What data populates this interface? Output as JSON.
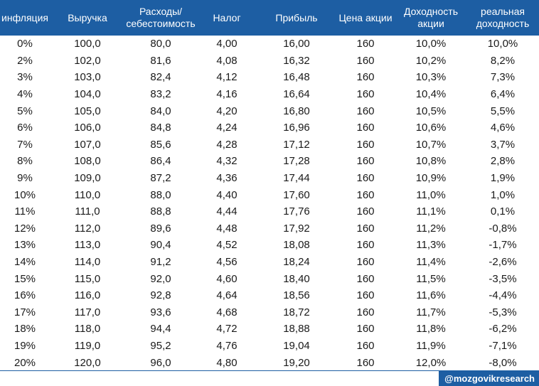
{
  "headers": [
    "инфляция",
    "Выручка",
    "Расходы/ себестоимость",
    "Налог",
    "Прибыль",
    "Цена акции",
    "Доходность акции",
    "реальная доходность"
  ],
  "rows": [
    [
      "0%",
      "100,0",
      "80,0",
      "4,00",
      "16,00",
      "160",
      "10,0%",
      "10,0%"
    ],
    [
      "2%",
      "102,0",
      "81,6",
      "4,08",
      "16,32",
      "160",
      "10,2%",
      "8,2%"
    ],
    [
      "3%",
      "103,0",
      "82,4",
      "4,12",
      "16,48",
      "160",
      "10,3%",
      "7,3%"
    ],
    [
      "4%",
      "104,0",
      "83,2",
      "4,16",
      "16,64",
      "160",
      "10,4%",
      "6,4%"
    ],
    [
      "5%",
      "105,0",
      "84,0",
      "4,20",
      "16,80",
      "160",
      "10,5%",
      "5,5%"
    ],
    [
      "6%",
      "106,0",
      "84,8",
      "4,24",
      "16,96",
      "160",
      "10,6%",
      "4,6%"
    ],
    [
      "7%",
      "107,0",
      "85,6",
      "4,28",
      "17,12",
      "160",
      "10,7%",
      "3,7%"
    ],
    [
      "8%",
      "108,0",
      "86,4",
      "4,32",
      "17,28",
      "160",
      "10,8%",
      "2,8%"
    ],
    [
      "9%",
      "109,0",
      "87,2",
      "4,36",
      "17,44",
      "160",
      "10,9%",
      "1,9%"
    ],
    [
      "10%",
      "110,0",
      "88,0",
      "4,40",
      "17,60",
      "160",
      "11,0%",
      "1,0%"
    ],
    [
      "11%",
      "111,0",
      "88,8",
      "4,44",
      "17,76",
      "160",
      "11,1%",
      "0,1%"
    ],
    [
      "12%",
      "112,0",
      "89,6",
      "4,48",
      "17,92",
      "160",
      "11,2%",
      "-0,8%"
    ],
    [
      "13%",
      "113,0",
      "90,4",
      "4,52",
      "18,08",
      "160",
      "11,3%",
      "-1,7%"
    ],
    [
      "14%",
      "114,0",
      "91,2",
      "4,56",
      "18,24",
      "160",
      "11,4%",
      "-2,6%"
    ],
    [
      "15%",
      "115,0",
      "92,0",
      "4,60",
      "18,40",
      "160",
      "11,5%",
      "-3,5%"
    ],
    [
      "16%",
      "116,0",
      "92,8",
      "4,64",
      "18,56",
      "160",
      "11,6%",
      "-4,4%"
    ],
    [
      "17%",
      "117,0",
      "93,6",
      "4,68",
      "18,72",
      "160",
      "11,7%",
      "-5,3%"
    ],
    [
      "18%",
      "118,0",
      "94,4",
      "4,72",
      "18,88",
      "160",
      "11,8%",
      "-6,2%"
    ],
    [
      "19%",
      "119,0",
      "95,2",
      "4,76",
      "19,04",
      "160",
      "11,9%",
      "-7,1%"
    ],
    [
      "20%",
      "120,0",
      "96,0",
      "4,80",
      "19,20",
      "160",
      "12,0%",
      "-8,0%"
    ]
  ],
  "watermark": "@mozgovikresearch",
  "colors": {
    "header_bg": "#1d5ea3",
    "header_text": "#ffffff"
  }
}
